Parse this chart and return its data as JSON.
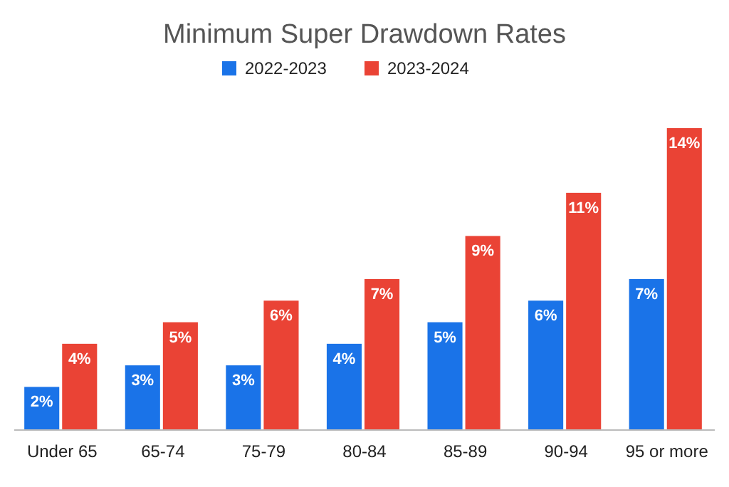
{
  "chart_data": {
    "type": "bar",
    "title": "Minimum Super Drawdown Rates",
    "categories": [
      "Under 65",
      "65-74",
      "75-79",
      "80-84",
      "85-89",
      "90-94",
      "95 or more"
    ],
    "series": [
      {
        "name": "2022-2023",
        "color": "#1a73e8",
        "values": [
          2,
          3,
          3,
          4,
          5,
          6,
          7
        ],
        "value_labels": [
          "2%",
          "3%",
          "3%",
          "4%",
          "5%",
          "6%",
          "7%"
        ]
      },
      {
        "name": "2023-2024",
        "color": "#ea4335",
        "values": [
          4,
          5,
          6,
          7,
          9,
          11,
          14
        ],
        "value_labels": [
          "4%",
          "5%",
          "6%",
          "7%",
          "9%",
          "11%",
          "14%"
        ]
      }
    ],
    "legend": "top"
  }
}
